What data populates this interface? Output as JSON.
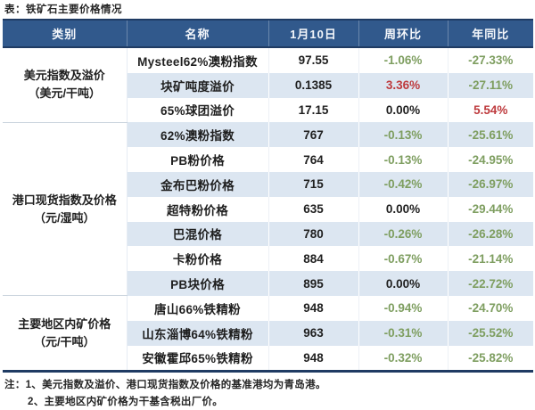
{
  "page_title": "表：铁矿石主要价格情况",
  "colors": {
    "header_bg": "#31598C",
    "header_text": "#FFFFFF",
    "navy_border": "#1F3B63",
    "row_shade": "#DCE6F1",
    "negative_green": "#7E9E60",
    "positive_red": "#BE3B3E",
    "neutral_black": "#1F1F1F"
  },
  "chart_data": {
    "type": "table",
    "title": "表：铁矿石主要价格情况",
    "columns": [
      "类别",
      "名称",
      "1月10日",
      "周环比",
      "年同比"
    ],
    "groups": [
      {
        "category": "美元指数及溢价",
        "unit": "（美元/干吨）",
        "rows": [
          {
            "name": "Mysteel62%澳粉指数",
            "price": "97.55",
            "wow": "-1.06%",
            "wow_dir": "down",
            "yoy": "-27.33%",
            "yoy_dir": "down"
          },
          {
            "name": "块矿吨度溢价",
            "price": "0.1385",
            "wow": "3.36%",
            "wow_dir": "up",
            "yoy": "-27.11%",
            "yoy_dir": "down"
          },
          {
            "name": "65%球团溢价",
            "price": "17.15",
            "wow": "0.00%",
            "wow_dir": "flat",
            "yoy": "5.54%",
            "yoy_dir": "up"
          }
        ]
      },
      {
        "category": "港口现货指数及价格",
        "unit": "（元/湿吨）",
        "rows": [
          {
            "name": "62%澳粉指数",
            "price": "767",
            "wow": "-0.13%",
            "wow_dir": "down",
            "yoy": "-25.61%",
            "yoy_dir": "down"
          },
          {
            "name": "PB粉价格",
            "price": "764",
            "wow": "-0.13%",
            "wow_dir": "down",
            "yoy": "-24.95%",
            "yoy_dir": "down"
          },
          {
            "name": "金布巴粉价格",
            "price": "715",
            "wow": "-0.42%",
            "wow_dir": "down",
            "yoy": "-26.97%",
            "yoy_dir": "down"
          },
          {
            "name": "超特粉价格",
            "price": "635",
            "wow": "0.00%",
            "wow_dir": "flat",
            "yoy": "-29.44%",
            "yoy_dir": "down"
          },
          {
            "name": "巴混价格",
            "price": "780",
            "wow": "-0.26%",
            "wow_dir": "down",
            "yoy": "-26.28%",
            "yoy_dir": "down"
          },
          {
            "name": "卡粉价格",
            "price": "884",
            "wow": "-0.67%",
            "wow_dir": "down",
            "yoy": "-21.14%",
            "yoy_dir": "down"
          },
          {
            "name": "PB块价格",
            "price": "895",
            "wow": "0.00%",
            "wow_dir": "flat",
            "yoy": "-22.72%",
            "yoy_dir": "down"
          }
        ]
      },
      {
        "category": "主要地区内矿价格",
        "unit": "（元/干吨）",
        "rows": [
          {
            "name": "唐山66%铁精粉",
            "price": "948",
            "wow": "-0.94%",
            "wow_dir": "down",
            "yoy": "-24.70%",
            "yoy_dir": "down"
          },
          {
            "name": "山东淄博64%铁精粉",
            "price": "963",
            "wow": "-0.31%",
            "wow_dir": "down",
            "yoy": "-25.52%",
            "yoy_dir": "down"
          },
          {
            "name": "安徽霍邱65%铁精粉",
            "price": "948",
            "wow": "-0.32%",
            "wow_dir": "down",
            "yoy": "-25.82%",
            "yoy_dir": "down"
          }
        ]
      }
    ]
  },
  "notes": {
    "line1": "注：1、美元指数及溢价、港口现货指数及价格的基准港均为青岛港。",
    "line2": "2、主要地区内矿价格为干基含税出厂价。"
  }
}
